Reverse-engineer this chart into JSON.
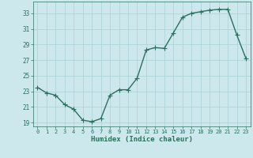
{
  "x": [
    0,
    1,
    2,
    3,
    4,
    5,
    6,
    7,
    8,
    9,
    10,
    11,
    12,
    13,
    14,
    15,
    16,
    17,
    18,
    19,
    20,
    21,
    22,
    23
  ],
  "y": [
    23.5,
    22.8,
    22.5,
    21.3,
    20.7,
    19.3,
    19.1,
    19.5,
    22.5,
    23.2,
    23.2,
    24.7,
    28.3,
    28.6,
    28.5,
    30.5,
    32.5,
    33.0,
    33.2,
    33.4,
    33.5,
    33.5,
    30.2,
    27.2
  ],
  "xlabel": "Humidex (Indice chaleur)",
  "ylim": [
    18.5,
    34.5
  ],
  "xlim": [
    -0.5,
    23.5
  ],
  "yticks": [
    19,
    21,
    23,
    25,
    27,
    29,
    31,
    33
  ],
  "xticks": [
    0,
    1,
    2,
    3,
    4,
    5,
    6,
    7,
    8,
    9,
    10,
    11,
    12,
    13,
    14,
    15,
    16,
    17,
    18,
    19,
    20,
    21,
    22,
    23
  ],
  "line_color": "#2e6e5e",
  "bg_color": "#cce8ec",
  "grid_color": "#aad0d6",
  "tick_label_color": "#2e6e5e",
  "marker": "+",
  "marker_size": 4,
  "line_width": 1.0
}
